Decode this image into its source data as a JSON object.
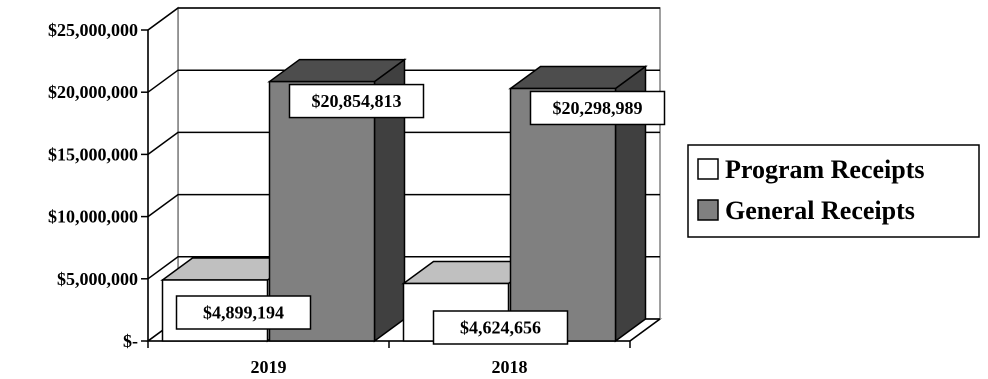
{
  "chart_data": {
    "type": "bar",
    "title": "",
    "xlabel": "",
    "ylabel": "",
    "categories": [
      "2019",
      "2018"
    ],
    "series": [
      {
        "name": "Program Receipts",
        "values": [
          4899194,
          4624656
        ],
        "labels": [
          "$4,899,194",
          "$4,624,656"
        ],
        "color": "#ffffff",
        "top_color": "#c0c0c0"
      },
      {
        "name": "General Receipts",
        "values": [
          20854813,
          20298989
        ],
        "labels": [
          "$20,854,813",
          "$20,298,989"
        ],
        "color": "#808080",
        "top_color": "#4d4d4d"
      }
    ],
    "ylim": [
      0,
      25000000
    ],
    "y_ticks": [
      0,
      5000000,
      10000000,
      15000000,
      20000000,
      25000000
    ],
    "y_tick_labels": [
      "$-",
      "$5,000,000",
      "$10,000,000",
      "$15,000,000",
      "$20,000,000",
      "$25,000,000"
    ],
    "grid": true,
    "legend_position": "right",
    "bar_style": "3d"
  }
}
